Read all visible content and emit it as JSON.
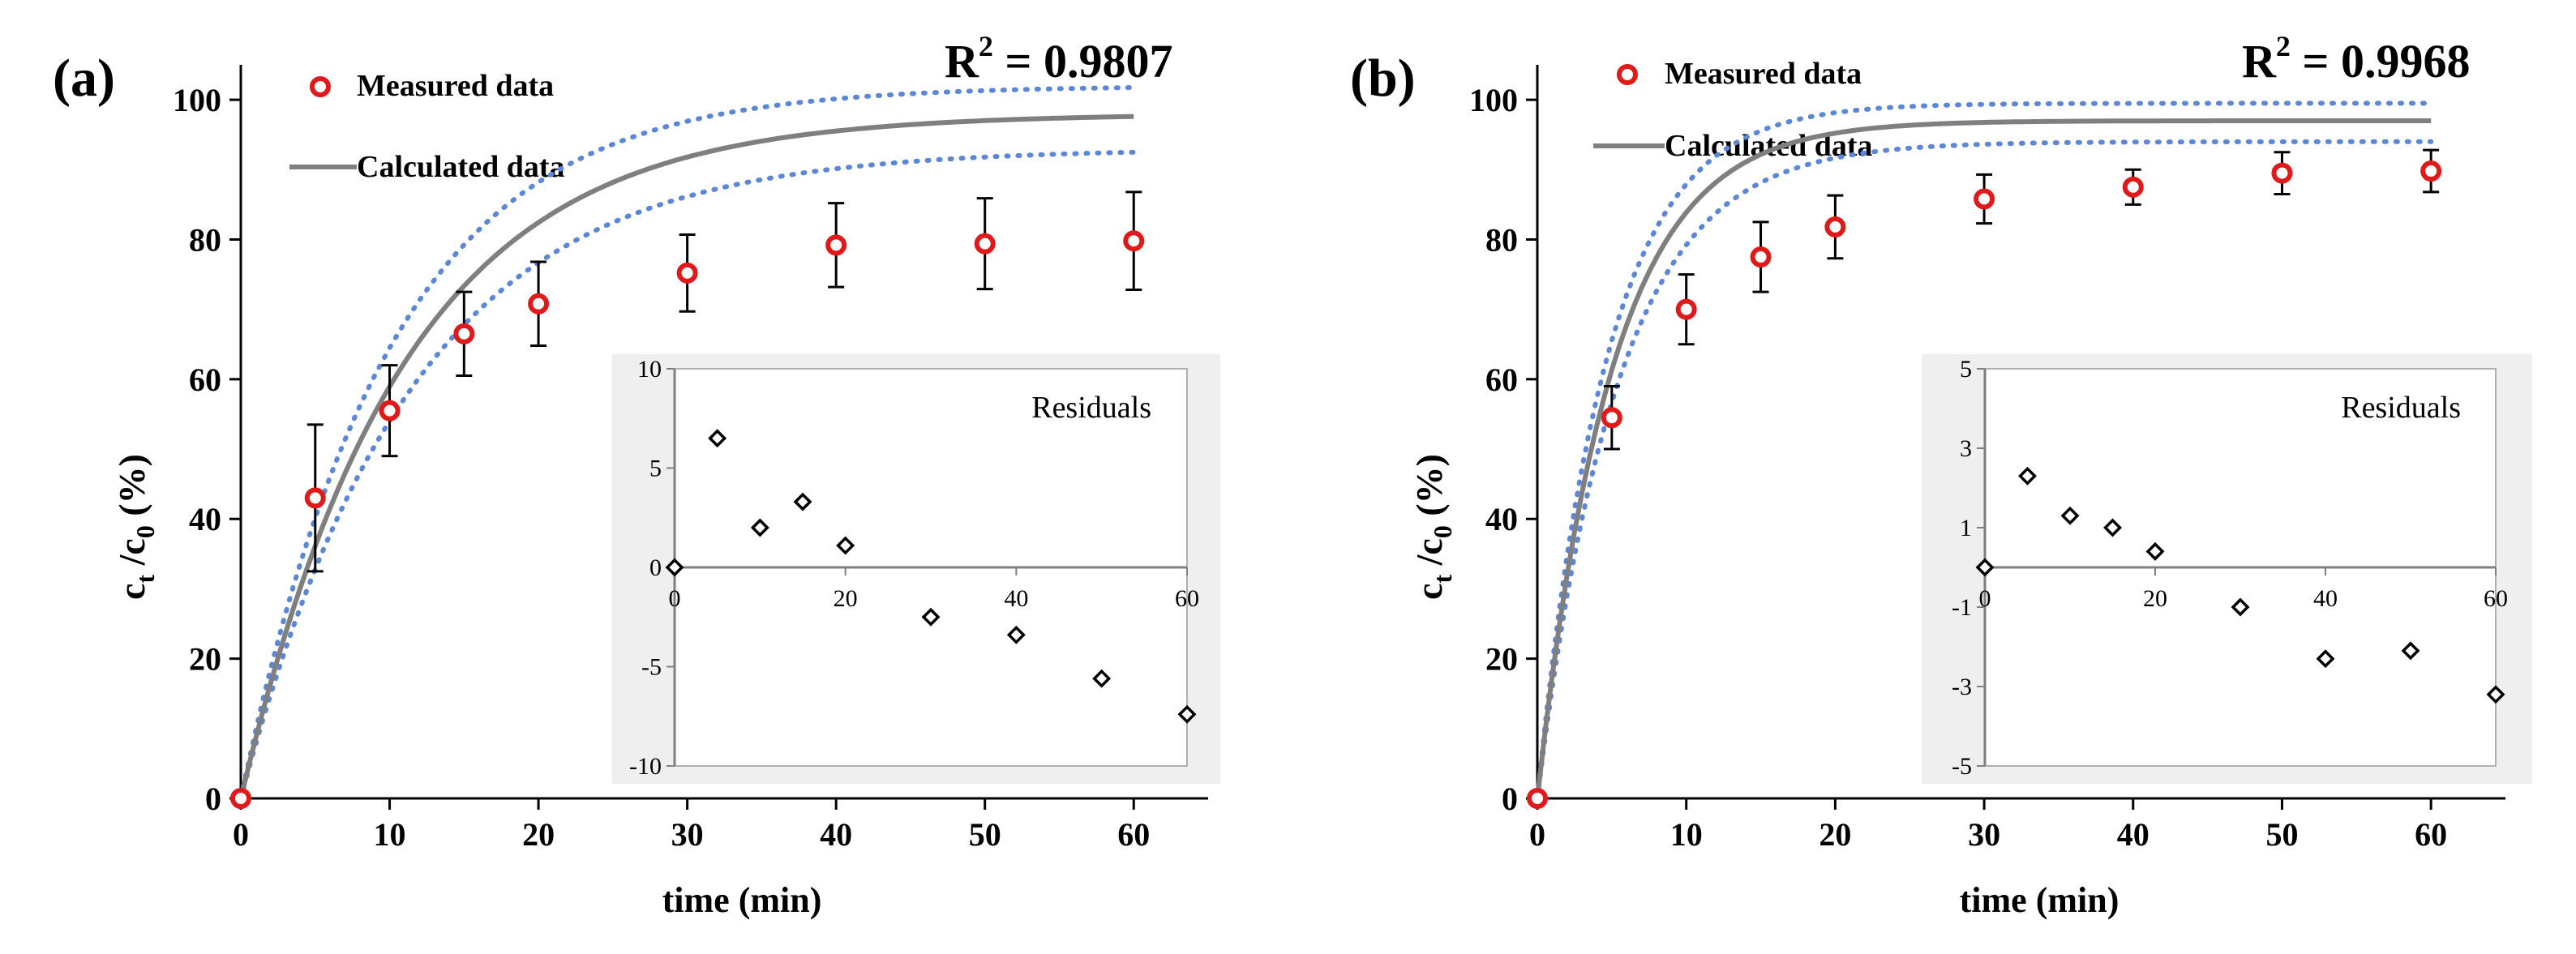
{
  "colors": {
    "measured": "#e01a1a",
    "calculated": "#7f7f7f",
    "confidence": "#5b87d6",
    "axis": "#000000",
    "inset_bg": "#efefef",
    "error_bar": "#000000"
  },
  "chart_data": [
    {
      "type": "scatter",
      "panel_label": "(a)",
      "r2_label": "R",
      "r2_sup": "2",
      "r2_value": " = 0.9807",
      "xlabel": "time (min)",
      "ylabel_main": "c",
      "ylabel_sub1": "t",
      "ylabel_mid": " /c",
      "ylabel_sub2": "0",
      "ylabel_tail": " (%)",
      "xlim": [
        0,
        65
      ],
      "ylim": [
        0,
        105
      ],
      "xticks": [
        0,
        10,
        20,
        30,
        40,
        50,
        60
      ],
      "yticks": [
        0,
        20,
        40,
        60,
        80,
        100
      ],
      "legend": {
        "measured": "Measured data",
        "calculated": "Calculated data"
      },
      "measured": {
        "x": [
          0,
          5,
          10,
          15,
          20,
          30,
          40,
          50,
          60
        ],
        "y": [
          0,
          43,
          55.5,
          66.5,
          70.8,
          75.2,
          79.2,
          79.4,
          79.8
        ],
        "err": [
          0,
          10.5,
          6.5,
          6,
          6,
          5.5,
          6,
          6.5,
          7
        ]
      },
      "calculated": {
        "model": "saturation",
        "ymax": 98.0,
        "k": 0.092
      },
      "band": {
        "upper_ymax": 102.0,
        "upper_k": 0.1,
        "lower_ymax": 93.0,
        "lower_k": 0.087
      },
      "inset": {
        "title": "Residuals",
        "xlim": [
          0,
          60
        ],
        "ylim": [
          -10,
          10
        ],
        "xticks": [
          0,
          20,
          40,
          60
        ],
        "yticks": [
          10,
          5,
          0,
          -5,
          -10
        ],
        "x": [
          0,
          5,
          10,
          15,
          20,
          30,
          40,
          50,
          60
        ],
        "y": [
          0,
          6.5,
          2,
          3.3,
          1.1,
          -2.5,
          -3.4,
          -5.6,
          -7.4
        ]
      }
    },
    {
      "type": "scatter",
      "panel_label": "(b)",
      "r2_label": "R",
      "r2_sup": "2",
      "r2_value": " = 0.9968",
      "xlabel": "time (min)",
      "ylabel_main": "c",
      "ylabel_sub1": "t",
      "ylabel_mid": " /c",
      "ylabel_sub2": "0",
      "ylabel_tail": " (%)",
      "xlim": [
        0,
        65
      ],
      "ylim": [
        0,
        105
      ],
      "xticks": [
        0,
        10,
        20,
        30,
        40,
        50,
        60
      ],
      "yticks": [
        0,
        20,
        40,
        60,
        80,
        100
      ],
      "legend": {
        "measured": "Measured data",
        "calculated": "Calculated data"
      },
      "measured": {
        "x": [
          0,
          5,
          10,
          15,
          20,
          30,
          40,
          50,
          60
        ],
        "y": [
          0,
          54.5,
          70,
          77.5,
          81.8,
          85.8,
          87.5,
          89.5,
          89.8
        ],
        "err": [
          0,
          4.5,
          5,
          5,
          4.5,
          3.5,
          2.5,
          3,
          3
        ]
      },
      "calculated": {
        "model": "saturation",
        "ymax": 97.0,
        "k": 0.2
      },
      "band": {
        "upper_ymax": 99.5,
        "upper_k": 0.215,
        "lower_ymax": 94.0,
        "lower_k": 0.185
      },
      "inset": {
        "title": "Residuals",
        "xlim": [
          0,
          60
        ],
        "ylim": [
          -5,
          5
        ],
        "xticks": [
          0,
          20,
          40,
          60
        ],
        "yticks": [
          5,
          3,
          1,
          -1,
          -3,
          -5
        ],
        "x": [
          0,
          5,
          10,
          15,
          20,
          30,
          40,
          50,
          60
        ],
        "y": [
          0,
          2.3,
          1.3,
          1,
          0.4,
          -1,
          -2.3,
          -2.1,
          -3.2
        ]
      }
    }
  ]
}
